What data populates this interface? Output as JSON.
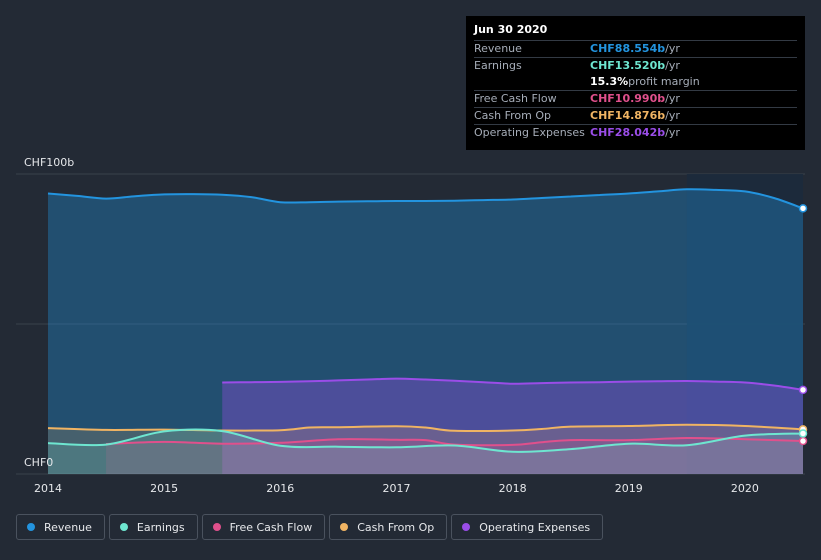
{
  "tooltip": {
    "date": "Jun 30 2020",
    "rows": [
      {
        "label": "Revenue",
        "value": "CHF88.554b",
        "unit": " /yr",
        "color": "#2394df"
      },
      {
        "label": "Earnings",
        "value": "CHF13.520b",
        "unit": " /yr",
        "color": "#6ee6d0"
      },
      {
        "label": "",
        "value": "15.3%",
        "unit": " profit margin",
        "color": "#ffffff"
      },
      {
        "label": "Free Cash Flow",
        "value": "CHF10.990b",
        "unit": " /yr",
        "color": "#e0508c"
      },
      {
        "label": "Cash From Op",
        "value": "CHF14.876b",
        "unit": " /yr",
        "color": "#f0b463"
      },
      {
        "label": "Operating Expenses",
        "value": "CHF28.042b",
        "unit": " /yr",
        "color": "#9a4de8"
      }
    ]
  },
  "legend": [
    {
      "label": "Revenue",
      "color": "#2394df"
    },
    {
      "label": "Earnings",
      "color": "#6ee6d0"
    },
    {
      "label": "Free Cash Flow",
      "color": "#e0508c"
    },
    {
      "label": "Cash From Op",
      "color": "#f0b463"
    },
    {
      "label": "Operating Expenses",
      "color": "#9a4de8"
    }
  ],
  "chart_data": {
    "type": "area",
    "y_top_label": "CHF100b",
    "y_bottom_label": "CHF0",
    "ylim": [
      0,
      100
    ],
    "xlim": [
      2014.0,
      2020.5
    ],
    "x_ticks": [
      2014,
      2015,
      2016,
      2017,
      2018,
      2019,
      2020
    ],
    "x_tick_labels": [
      "2014",
      "2015",
      "2016",
      "2017",
      "2018",
      "2019",
      "2020"
    ],
    "highlight_from": 2019.5,
    "series": [
      {
        "name": "Revenue",
        "color": "#2394df",
        "points": [
          [
            2014.0,
            93.5
          ],
          [
            2014.25,
            92.7
          ],
          [
            2014.5,
            91.8
          ],
          [
            2014.75,
            92.6
          ],
          [
            2015.0,
            93.2
          ],
          [
            2015.25,
            93.3
          ],
          [
            2015.5,
            93.1
          ],
          [
            2015.75,
            92.3
          ],
          [
            2016.0,
            90.6
          ],
          [
            2016.25,
            90.6
          ],
          [
            2016.5,
            90.8
          ],
          [
            2016.75,
            90.9
          ],
          [
            2017.0,
            91.0
          ],
          [
            2017.25,
            91.0
          ],
          [
            2017.5,
            91.1
          ],
          [
            2017.75,
            91.3
          ],
          [
            2018.0,
            91.5
          ],
          [
            2018.25,
            92.0
          ],
          [
            2018.5,
            92.5
          ],
          [
            2018.75,
            93.0
          ],
          [
            2019.0,
            93.5
          ],
          [
            2019.25,
            94.2
          ],
          [
            2019.5,
            94.9
          ],
          [
            2019.75,
            94.7
          ],
          [
            2020.0,
            94.2
          ],
          [
            2020.25,
            92.0
          ],
          [
            2020.5,
            88.554
          ]
        ]
      },
      {
        "name": "Operating Expenses",
        "color": "#9a4de8",
        "points": [
          [
            2015.5,
            30.5
          ],
          [
            2015.75,
            30.6
          ],
          [
            2016.0,
            30.7
          ],
          [
            2016.25,
            30.9
          ],
          [
            2016.5,
            31.2
          ],
          [
            2016.75,
            31.5
          ],
          [
            2017.0,
            31.8
          ],
          [
            2017.25,
            31.5
          ],
          [
            2017.5,
            31.1
          ],
          [
            2017.75,
            30.6
          ],
          [
            2018.0,
            30.1
          ],
          [
            2018.25,
            30.3
          ],
          [
            2018.5,
            30.5
          ],
          [
            2018.75,
            30.6
          ],
          [
            2019.0,
            30.8
          ],
          [
            2019.25,
            30.9
          ],
          [
            2019.5,
            31.0
          ],
          [
            2019.75,
            30.8
          ],
          [
            2020.0,
            30.5
          ],
          [
            2020.25,
            29.5
          ],
          [
            2020.5,
            28.042
          ]
        ]
      },
      {
        "name": "Cash From Op",
        "color": "#f0b463",
        "points": [
          [
            2014.0,
            15.3
          ],
          [
            2014.5,
            14.7
          ],
          [
            2015.0,
            14.8
          ],
          [
            2015.5,
            14.5
          ],
          [
            2016.0,
            14.6
          ],
          [
            2016.25,
            15.5
          ],
          [
            2016.5,
            15.6
          ],
          [
            2017.0,
            15.9
          ],
          [
            2017.25,
            15.5
          ],
          [
            2017.5,
            14.4
          ],
          [
            2018.0,
            14.5
          ],
          [
            2018.25,
            15.0
          ],
          [
            2018.5,
            15.8
          ],
          [
            2019.0,
            16.0
          ],
          [
            2019.5,
            16.4
          ],
          [
            2020.0,
            16.0
          ],
          [
            2020.5,
            14.876
          ]
        ]
      },
      {
        "name": "Free Cash Flow",
        "color": "#e0508c",
        "points": [
          [
            2014.5,
            10.0
          ],
          [
            2015.0,
            10.7
          ],
          [
            2015.5,
            10.1
          ],
          [
            2016.0,
            10.4
          ],
          [
            2016.5,
            11.6
          ],
          [
            2017.0,
            11.4
          ],
          [
            2017.25,
            11.3
          ],
          [
            2017.5,
            9.8
          ],
          [
            2018.0,
            9.7
          ],
          [
            2018.25,
            10.6
          ],
          [
            2018.5,
            11.3
          ],
          [
            2019.0,
            11.3
          ],
          [
            2019.5,
            12.0
          ],
          [
            2020.0,
            11.6
          ],
          [
            2020.5,
            10.99
          ]
        ]
      },
      {
        "name": "Earnings",
        "color": "#6ee6d0",
        "points": [
          [
            2014.0,
            10.3
          ],
          [
            2014.5,
            9.8
          ],
          [
            2015.0,
            14.2
          ],
          [
            2015.5,
            14.3
          ],
          [
            2016.0,
            9.4
          ],
          [
            2016.5,
            9.1
          ],
          [
            2017.0,
            8.9
          ],
          [
            2017.5,
            9.5
          ],
          [
            2018.0,
            7.4
          ],
          [
            2018.5,
            8.3
          ],
          [
            2019.0,
            10.1
          ],
          [
            2019.5,
            9.6
          ],
          [
            2020.0,
            12.8
          ],
          [
            2020.5,
            13.52
          ]
        ]
      }
    ]
  }
}
